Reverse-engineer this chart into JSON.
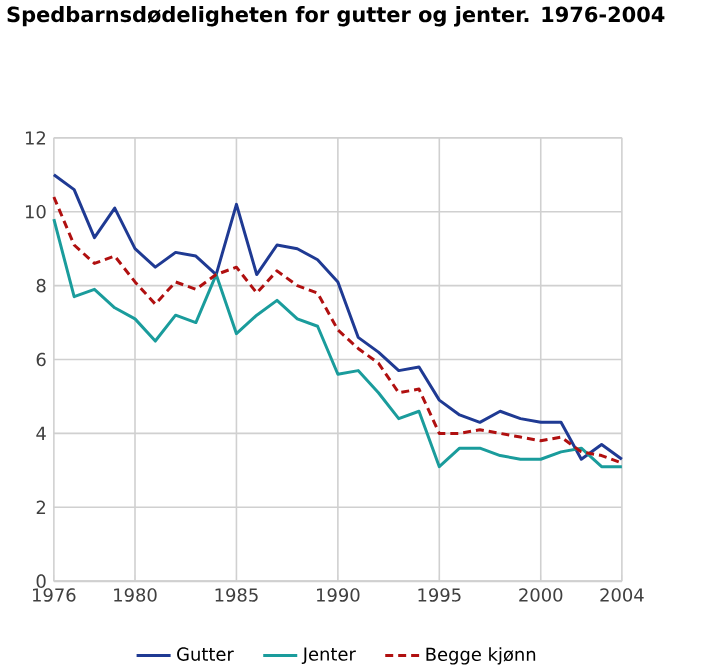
{
  "chart_data": {
    "type": "line",
    "title": "Spedbarnsdødeligheten for gutter og jenter. 1976-2004",
    "x": [
      1976,
      1977,
      1978,
      1979,
      1980,
      1981,
      1982,
      1983,
      1984,
      1985,
      1986,
      1987,
      1988,
      1989,
      1990,
      1991,
      1992,
      1993,
      1994,
      1995,
      1996,
      1997,
      1998,
      1999,
      2000,
      2001,
      2002,
      2003,
      2004
    ],
    "series": [
      {
        "name": "Gutter",
        "color": "#1f3a93",
        "line_style": "solid",
        "values": [
          11.0,
          10.6,
          9.3,
          10.1,
          9.0,
          8.5,
          8.9,
          8.8,
          8.3,
          10.2,
          8.3,
          9.1,
          9.0,
          8.7,
          8.1,
          6.6,
          6.2,
          5.7,
          5.8,
          4.9,
          4.5,
          4.3,
          4.6,
          4.4,
          4.3,
          4.3,
          3.3,
          3.7,
          3.3
        ]
      },
      {
        "name": "Jenter",
        "color": "#1a9c9c",
        "line_style": "solid",
        "values": [
          9.8,
          7.7,
          7.9,
          7.4,
          7.1,
          6.5,
          7.2,
          7.0,
          8.3,
          6.7,
          7.2,
          7.6,
          7.1,
          6.9,
          5.6,
          5.7,
          5.1,
          4.4,
          4.6,
          3.1,
          3.6,
          3.6,
          3.4,
          3.3,
          3.3,
          3.5,
          3.6,
          3.1,
          3.1
        ]
      },
      {
        "name": "Begge kjønn",
        "color": "#b01010",
        "line_style": "dashed",
        "values": [
          10.4,
          9.1,
          8.6,
          8.8,
          8.1,
          7.5,
          8.1,
          7.9,
          8.3,
          8.5,
          7.8,
          8.4,
          8.0,
          7.8,
          6.8,
          6.3,
          5.9,
          5.1,
          5.2,
          4.0,
          4.0,
          4.1,
          4.0,
          3.9,
          3.8,
          3.9,
          3.5,
          3.4,
          3.2
        ]
      }
    ],
    "xlim": [
      1976,
      2004
    ],
    "ylim": [
      0,
      12
    ],
    "xticks": [
      1976,
      1980,
      1985,
      1990,
      1995,
      2000,
      2004
    ],
    "yticks": [
      0,
      2,
      4,
      6,
      8,
      10,
      12
    ],
    "grid": true,
    "legend": "bottom",
    "marker": "none"
  }
}
